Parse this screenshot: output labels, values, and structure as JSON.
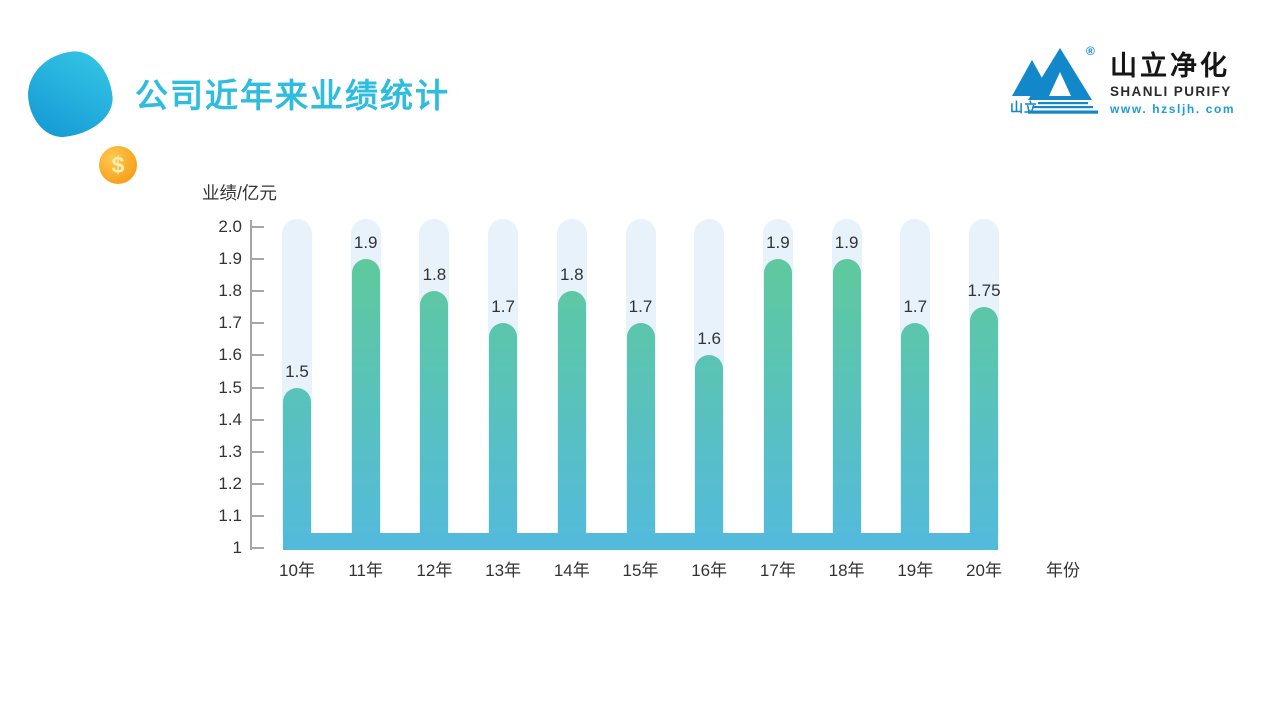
{
  "slide": {
    "title": "公司近年来业绩统计",
    "accent_color": "#2EBCDF",
    "coin_symbol": "$"
  },
  "logo": {
    "mountain_label": "山立",
    "registered_mark": "®",
    "name_cn": "山立净化",
    "name_en": "SHANLI PURIFY",
    "website": "www. hzsljh. com",
    "brand_blue": "#1287C9"
  },
  "chart_data": {
    "type": "bar",
    "title": "公司近年来业绩统计",
    "ylabel": "业绩/亿元",
    "xlabel": "年份",
    "categories": [
      "10年",
      "11年",
      "12年",
      "13年",
      "14年",
      "15年",
      "16年",
      "17年",
      "18年",
      "19年",
      "20年"
    ],
    "values": [
      1.5,
      1.9,
      1.8,
      1.7,
      1.8,
      1.7,
      1.6,
      1.9,
      1.9,
      1.7,
      1.75
    ],
    "value_labels": [
      "1.5",
      "1.9",
      "1.8",
      "1.7",
      "1.8",
      "1.7",
      "1.6",
      "1.9",
      "1.9",
      "1.7",
      "1.75"
    ],
    "ylim": [
      1,
      2
    ],
    "ytick_labels": [
      "2.0",
      "1.9",
      "1.8",
      "1.7",
      "1.6",
      "1.5",
      "1.4",
      "1.3",
      "1.2",
      "1.1",
      "1"
    ],
    "grid": false,
    "legend": "none",
    "colors": {
      "bar_top": "#60CB96",
      "bar_bottom": "#53BADC",
      "track": "#E7F2FB",
      "baseline_strip": "#53BADC",
      "axis": "#A6A6A6",
      "text": "#333333"
    }
  }
}
